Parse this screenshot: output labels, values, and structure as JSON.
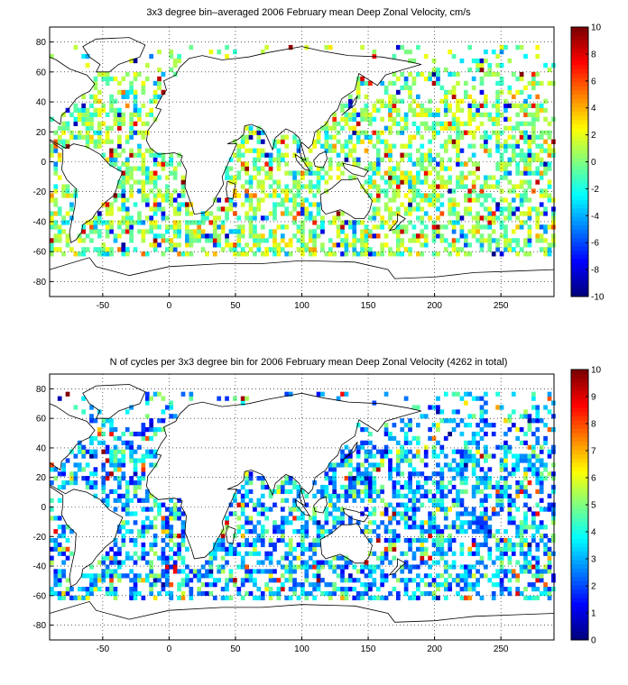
{
  "panels": [
    {
      "title": "3x3 degree bin–averaged 2006 February mean Deep Zonal Velocity, cm/s",
      "x_ticks": [
        "-50",
        "0",
        "50",
        "100",
        "150",
        "200",
        "250"
      ],
      "y_ticks": [
        "80",
        "60",
        "40",
        "20",
        "0",
        "-20",
        "-40",
        "-60",
        "-80"
      ],
      "colorbar_ticks": [
        "10",
        "8",
        "6",
        "4",
        "2",
        "0",
        "-2",
        "-4",
        "-6",
        "-8",
        "-10"
      ]
    },
    {
      "title": "N of cycles per 3x3 degree bin for 2006 February mean Deep Zonal Velocity (4262 in total)",
      "x_ticks": [
        "-50",
        "0",
        "50",
        "100",
        "150",
        "200",
        "250"
      ],
      "y_ticks": [
        "80",
        "60",
        "40",
        "20",
        "0",
        "-20",
        "-40",
        "-60",
        "-80"
      ],
      "colorbar_ticks": [
        "10",
        "9",
        "8",
        "7",
        "6",
        "5",
        "4",
        "3",
        "2",
        "1",
        "0"
      ]
    }
  ],
  "chart_data": [
    {
      "type": "heatmap",
      "title": "3x3 degree bin–averaged 2006 February mean Deep Zonal Velocity, cm/s",
      "x_range": [
        -90,
        290
      ],
      "y_range": [
        -90,
        90
      ],
      "bin_size_deg": 3,
      "color_range": [
        -10,
        10
      ],
      "colormap": "jet",
      "grid": true
    },
    {
      "type": "heatmap",
      "title": "N of cycles per 3x3 degree bin for 2006 February mean Deep Zonal Velocity (4262 in total)",
      "x_range": [
        -90,
        290
      ],
      "y_range": [
        -90,
        90
      ],
      "bin_size_deg": 3,
      "color_range": [
        0,
        10
      ],
      "colormap": "jet",
      "grid": true
    }
  ]
}
